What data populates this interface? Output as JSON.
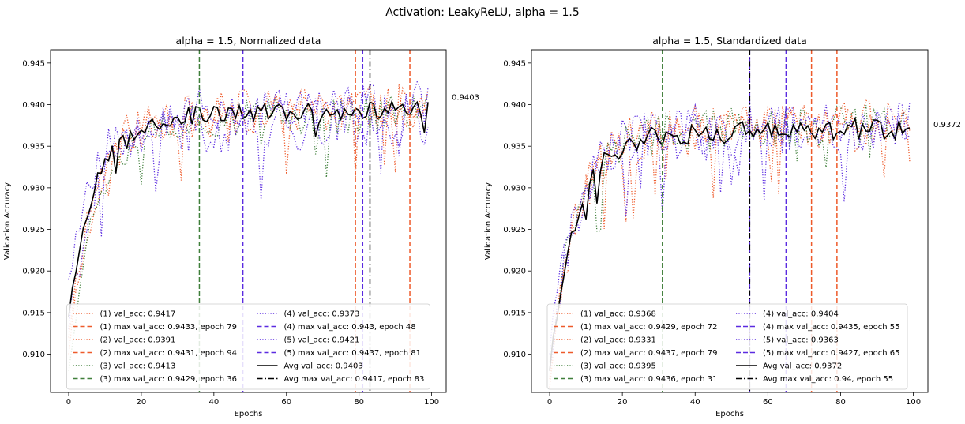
{
  "suptitle": "Activation: LeakyReLU, alpha = 1.5",
  "colors": {
    "run1": "#ee5a2a",
    "run2": "#ee5a2a",
    "run3": "#3f7f3a",
    "run4": "#5b2be0",
    "run5": "#5b2be0",
    "avg": "#000000"
  },
  "chart_data": [
    {
      "type": "line",
      "title": "alpha = 1.5, Normalized data",
      "xlabel": "Epochs",
      "ylabel": "Validation Accuracy",
      "xlim": [
        -5,
        104
      ],
      "ylim": [
        0.9054,
        0.9466
      ],
      "xticks": [
        0,
        20,
        40,
        60,
        80,
        100
      ],
      "yticks": [
        0.91,
        0.915,
        0.92,
        0.925,
        0.93,
        0.935,
        0.94,
        0.945
      ],
      "ytick_labels": [
        "0.910",
        "0.915",
        "0.920",
        "0.925",
        "0.930",
        "0.935",
        "0.940",
        "0.945"
      ],
      "end_annotation": "0.9403",
      "legend_location": "lower-center",
      "legend_columns": 2,
      "series": [
        {
          "name": "(1) val_acc: 0.9417",
          "style": "dotted",
          "color_key": "run1",
          "start": 0.912,
          "plateau": 0.939,
          "end": 0.9417,
          "seed": 11,
          "noise": 0.0026
        },
        {
          "name": "(2) val_acc: 0.9391",
          "style": "dotted",
          "color_key": "run2",
          "start": 0.91,
          "plateau": 0.9385,
          "end": 0.9391,
          "seed": 23,
          "noise": 0.0026
        },
        {
          "name": "(3) val_acc: 0.9413",
          "style": "dotted",
          "color_key": "run3",
          "start": 0.908,
          "plateau": 0.938,
          "end": 0.9413,
          "seed": 37,
          "noise": 0.0024
        },
        {
          "name": "(4) val_acc: 0.9373",
          "style": "dotted",
          "color_key": "run4",
          "start": 0.913,
          "plateau": 0.937,
          "end": 0.9373,
          "seed": 41,
          "noise": 0.0032
        },
        {
          "name": "(5) val_acc: 0.9421",
          "style": "dotted",
          "color_key": "run5",
          "start": 0.919,
          "plateau": 0.939,
          "end": 0.9421,
          "seed": 53,
          "noise": 0.0028
        },
        {
          "name": "Avg val_acc: 0.9403",
          "style": "solid",
          "color_key": "avg",
          "start": 0.9145,
          "plateau": 0.9385,
          "end": 0.9403,
          "seed": 67,
          "noise": 0.0011
        }
      ],
      "max_lines": [
        {
          "name": "(1) max val_acc: 0.9433, epoch 79",
          "epoch": 79,
          "color_key": "run1",
          "style": "dashed"
        },
        {
          "name": "(2) max val_acc: 0.9431, epoch 94",
          "epoch": 94,
          "color_key": "run2",
          "style": "dashed"
        },
        {
          "name": "(3) max val_acc: 0.9429, epoch 36",
          "epoch": 36,
          "color_key": "run3",
          "style": "dashed"
        },
        {
          "name": "(4) max val_acc: 0.943, epoch 48",
          "epoch": 48,
          "color_key": "run4",
          "style": "dashed"
        },
        {
          "name": "(5) max val_acc: 0.9437, epoch 81",
          "epoch": 81,
          "color_key": "run5",
          "style": "dashed"
        },
        {
          "name": "Avg max val_acc: 0.9417, epoch 83",
          "epoch": 83,
          "color_key": "avg",
          "style": "dashdot"
        }
      ],
      "legend_order": [
        [
          "s",
          0
        ],
        [
          "m",
          0
        ],
        [
          "s",
          1
        ],
        [
          "m",
          1
        ],
        [
          "s",
          2
        ],
        [
          "m",
          2
        ],
        [
          "s",
          3
        ],
        [
          "m",
          3
        ],
        [
          "s",
          4
        ],
        [
          "m",
          4
        ],
        [
          "s",
          5
        ],
        [
          "m",
          5
        ]
      ]
    },
    {
      "type": "line",
      "title": "alpha = 1.5, Standardized data",
      "xlabel": "Epochs",
      "ylabel": "Validation Accuracy",
      "xlim": [
        -5,
        104
      ],
      "ylim": [
        0.9054,
        0.9466
      ],
      "xticks": [
        0,
        20,
        40,
        60,
        80,
        100
      ],
      "yticks": [
        0.91,
        0.915,
        0.92,
        0.925,
        0.93,
        0.935,
        0.94,
        0.945
      ],
      "ytick_labels": [
        "0.910",
        "0.915",
        "0.920",
        "0.925",
        "0.930",
        "0.935",
        "0.940",
        "0.945"
      ],
      "end_annotation": "0.9372",
      "legend_location": "lower-center",
      "legend_columns": 2,
      "series": [
        {
          "name": "(1) val_acc: 0.9368",
          "style": "dotted",
          "color_key": "run1",
          "start": 0.906,
          "plateau": 0.937,
          "end": 0.9368,
          "seed": 71,
          "noise": 0.0028
        },
        {
          "name": "(2) val_acc: 0.9331",
          "style": "dotted",
          "color_key": "run2",
          "start": 0.907,
          "plateau": 0.9365,
          "end": 0.9331,
          "seed": 83,
          "noise": 0.003
        },
        {
          "name": "(3) val_acc: 0.9395",
          "style": "dotted",
          "color_key": "run3",
          "start": 0.909,
          "plateau": 0.9365,
          "end": 0.9395,
          "seed": 97,
          "noise": 0.0026
        },
        {
          "name": "(4) val_acc: 0.9404",
          "style": "dotted",
          "color_key": "run4",
          "start": 0.91,
          "plateau": 0.9365,
          "end": 0.9404,
          "seed": 101,
          "noise": 0.003
        },
        {
          "name": "(5) val_acc: 0.9363",
          "style": "dotted",
          "color_key": "run5",
          "start": 0.908,
          "plateau": 0.9365,
          "end": 0.9363,
          "seed": 113,
          "noise": 0.0032
        },
        {
          "name": "Avg val_acc: 0.9372",
          "style": "solid",
          "color_key": "avg",
          "start": 0.908,
          "plateau": 0.9362,
          "end": 0.9372,
          "seed": 127,
          "noise": 0.0013
        }
      ],
      "max_lines": [
        {
          "name": "(1) max val_acc: 0.9429, epoch 72",
          "epoch": 72,
          "color_key": "run1",
          "style": "dashed"
        },
        {
          "name": "(2) max val_acc: 0.9437, epoch 79",
          "epoch": 79,
          "color_key": "run2",
          "style": "dashed"
        },
        {
          "name": "(3) max val_acc: 0.9436, epoch 31",
          "epoch": 31,
          "color_key": "run3",
          "style": "dashed"
        },
        {
          "name": "(4) max val_acc: 0.9435, epoch 55",
          "epoch": 55,
          "color_key": "run4",
          "style": "dashed"
        },
        {
          "name": "(5) max val_acc: 0.9427, epoch 65",
          "epoch": 65,
          "color_key": "run5",
          "style": "dashed"
        },
        {
          "name": "Avg max val_acc: 0.94, epoch 55",
          "epoch": 55,
          "color_key": "avg",
          "style": "dashdot"
        }
      ],
      "legend_order": [
        [
          "s",
          0
        ],
        [
          "m",
          0
        ],
        [
          "s",
          1
        ],
        [
          "m",
          1
        ],
        [
          "s",
          2
        ],
        [
          "m",
          2
        ],
        [
          "s",
          3
        ],
        [
          "m",
          3
        ],
        [
          "s",
          4
        ],
        [
          "m",
          4
        ],
        [
          "s",
          5
        ],
        [
          "m",
          5
        ]
      ]
    }
  ]
}
